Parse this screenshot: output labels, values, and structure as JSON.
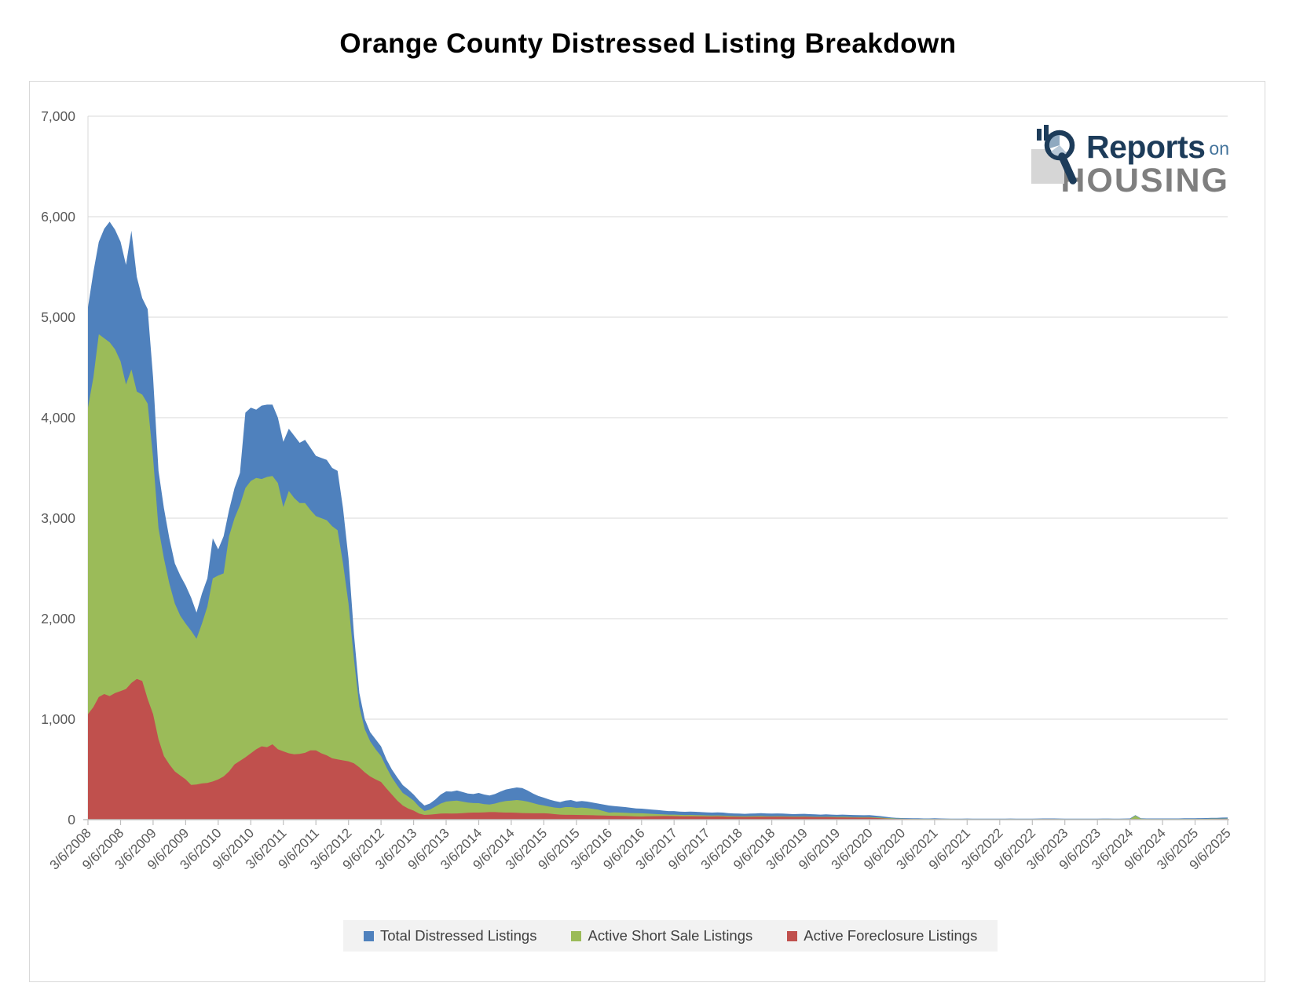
{
  "page": {
    "title": "Orange County Distressed Listing Breakdown"
  },
  "logo": {
    "reports": "Reports",
    "on": "on",
    "housing": "HOUSING"
  },
  "legend": {
    "items": [
      "Total Distressed Listings",
      "Active Short Sale Listings",
      "Active Foreclosure Listings"
    ]
  },
  "chart_data": {
    "type": "area",
    "title": "Orange County Distressed Listing Breakdown",
    "xlabel": "",
    "ylabel": "",
    "start_month": "2008-03",
    "sampling": "monthly",
    "ylim": [
      0,
      7000
    ],
    "y_max": 7000,
    "grid": "horizontal",
    "legend_position": "bottom",
    "y_tick_labels": [
      "0",
      "1,000",
      "2,000",
      "3,000",
      "4,000",
      "5,000",
      "6,000",
      "7,000"
    ],
    "x_tick_labels": [
      "3/6/2008",
      "9/6/2008",
      "3/6/2009",
      "9/6/2009",
      "3/6/2010",
      "9/6/2010",
      "3/6/2011",
      "9/6/2011",
      "3/6/2012",
      "9/6/2012",
      "3/6/2013",
      "9/6/2013",
      "3/6/2014",
      "9/6/2014",
      "3/6/2015",
      "9/6/2015",
      "3/6/2016",
      "9/6/2016",
      "3/6/2017",
      "9/6/2017",
      "3/6/2018",
      "9/6/2018",
      "3/6/2019",
      "9/6/2019",
      "3/6/2020",
      "9/6/2020",
      "3/6/2021",
      "9/6/2021",
      "3/6/2022",
      "9/6/2022",
      "3/6/2023",
      "9/6/2023",
      "3/6/2024",
      "9/6/2024",
      "3/6/2025",
      "9/6/2025"
    ],
    "x_ticks_every_n_points": 6,
    "series": [
      {
        "name": "Total Distressed Listings",
        "color": "#4F81BD",
        "values": [
          5100,
          5450,
          5750,
          5880,
          5950,
          5870,
          5750,
          5520,
          5860,
          5400,
          5190,
          5080,
          4400,
          3470,
          3100,
          2800,
          2550,
          2430,
          2330,
          2210,
          2060,
          2250,
          2400,
          2800,
          2690,
          2820,
          3080,
          3300,
          3450,
          4050,
          4100,
          4080,
          4120,
          4130,
          4130,
          4000,
          3760,
          3890,
          3820,
          3750,
          3780,
          3700,
          3620,
          3600,
          3580,
          3500,
          3470,
          3100,
          2600,
          1850,
          1260,
          1000,
          870,
          800,
          730,
          600,
          500,
          420,
          344,
          300,
          250,
          190,
          141,
          160,
          200,
          250,
          281,
          280,
          290,
          275,
          260,
          255,
          266,
          250,
          240,
          255,
          280,
          300,
          310,
          320,
          315,
          290,
          260,
          235,
          219,
          200,
          185,
          175,
          190,
          195,
          180,
          185,
          180,
          170,
          160,
          150,
          141,
          135,
          130,
          125,
          118,
          112,
          109,
          105,
          100,
          95,
          90,
          85,
          85,
          80,
          78,
          80,
          78,
          75,
          72,
          70,
          72,
          70,
          65,
          62,
          60,
          58,
          60,
          62,
          65,
          62,
          60,
          62,
          60,
          58,
          55,
          56,
          58,
          55,
          52,
          50,
          52,
          50,
          48,
          50,
          48,
          46,
          45,
          44,
          45,
          40,
          35,
          28,
          22,
          18,
          16,
          15,
          14,
          13,
          12,
          12,
          13,
          12,
          11,
          10,
          10,
          10,
          11,
          10,
          10,
          9,
          9,
          9,
          10,
          10,
          11,
          10,
          10,
          9,
          10,
          11,
          12,
          12,
          12,
          11,
          10,
          10,
          9,
          9,
          10,
          10,
          10,
          11,
          11,
          10,
          10,
          11,
          12,
          45,
          14,
          12,
          12,
          12,
          12,
          12,
          12,
          12,
          13,
          13,
          14,
          15,
          16,
          17,
          18,
          20,
          22
        ]
      },
      {
        "name": "Active Short Sale Listings",
        "color": "#9BBB59",
        "values": [
          4100,
          4400,
          4830,
          4790,
          4750,
          4680,
          4560,
          4330,
          4480,
          4260,
          4230,
          4140,
          3600,
          2900,
          2600,
          2350,
          2150,
          2030,
          1950,
          1880,
          1800,
          1950,
          2120,
          2400,
          2430,
          2450,
          2820,
          3000,
          3130,
          3300,
          3370,
          3400,
          3390,
          3410,
          3420,
          3350,
          3110,
          3270,
          3200,
          3150,
          3150,
          3080,
          3020,
          3000,
          2980,
          2920,
          2880,
          2550,
          2150,
          1600,
          1125,
          900,
          780,
          700,
          633,
          520,
          420,
          340,
          266,
          230,
          190,
          130,
          86,
          100,
          130,
          160,
          180,
          185,
          190,
          180,
          170,
          165,
          164,
          155,
          150,
          160,
          175,
          185,
          190,
          195,
          190,
          180,
          165,
          150,
          141,
          130,
          120,
          115,
          125,
          125,
          117,
          120,
          115,
          108,
          100,
          85,
          70,
          72,
          70,
          68,
          66,
          64,
          63,
          60,
          58,
          55,
          52,
          50,
          50,
          48,
          46,
          47,
          45,
          44,
          42,
          41,
          42,
          40,
          38,
          36,
          35,
          34,
          35,
          36,
          37,
          35,
          34,
          35,
          34,
          33,
          32,
          32,
          33,
          31,
          30,
          29,
          30,
          29,
          28,
          29,
          28,
          26,
          26,
          25,
          26,
          23,
          20,
          16,
          13,
          10,
          9,
          8,
          8,
          7,
          7,
          7,
          7,
          6,
          6,
          6,
          5,
          5,
          6,
          5,
          5,
          5,
          5,
          5,
          5,
          5,
          6,
          5,
          5,
          5,
          5,
          6,
          6,
          6,
          6,
          6,
          5,
          5,
          5,
          5,
          5,
          5,
          5,
          6,
          6,
          5,
          5,
          6,
          6,
          40,
          9,
          7,
          6,
          6,
          6,
          6,
          6,
          6,
          7,
          7,
          7,
          8,
          8,
          9,
          9,
          10,
          11
        ]
      },
      {
        "name": "Active Foreclosure Listings",
        "color": "#C0504D",
        "values": [
          1050,
          1120,
          1220,
          1250,
          1230,
          1260,
          1280,
          1300,
          1360,
          1400,
          1380,
          1200,
          1050,
          800,
          633,
          550,
          480,
          440,
          400,
          345,
          350,
          360,
          365,
          380,
          400,
          430,
          480,
          550,
          585,
          620,
          660,
          700,
          730,
          720,
          750,
          700,
          680,
          660,
          650,
          655,
          665,
          690,
          690,
          660,
          640,
          610,
          600,
          590,
          580,
          560,
          520,
          470,
          430,
          400,
          375,
          310,
          250,
          190,
          141,
          110,
          90,
          60,
          47,
          50,
          55,
          60,
          62,
          60,
          62,
          65,
          68,
          70,
          70,
          72,
          75,
          75,
          72,
          70,
          70,
          68,
          66,
          64,
          63,
          63,
          63,
          60,
          55,
          50,
          48,
          48,
          47,
          46,
          45,
          44,
          42,
          41,
          39,
          38,
          37,
          36,
          34,
          32,
          31,
          33,
          34,
          35,
          36,
          36,
          35,
          34,
          33,
          34,
          33,
          33,
          32,
          32,
          33,
          32,
          30,
          29,
          28,
          27,
          28,
          29,
          30,
          30,
          29,
          30,
          29,
          28,
          27,
          27,
          28,
          27,
          26,
          25,
          25,
          24,
          23,
          23,
          22,
          21,
          20,
          20,
          20,
          17,
          14,
          11,
          8,
          7,
          6,
          6,
          5,
          5,
          4,
          4,
          5,
          5,
          4,
          4,
          4,
          4,
          4,
          4,
          4,
          3,
          3,
          3,
          4,
          4,
          4,
          4,
          4,
          3,
          4,
          4,
          5,
          5,
          5,
          4,
          4,
          4,
          3,
          3,
          4,
          4,
          4,
          4,
          4,
          4,
          4,
          4,
          5,
          5,
          4,
          4,
          4,
          4,
          4,
          4,
          4,
          4,
          4,
          4,
          5,
          5,
          5,
          5,
          6,
          6,
          7
        ]
      }
    ]
  }
}
